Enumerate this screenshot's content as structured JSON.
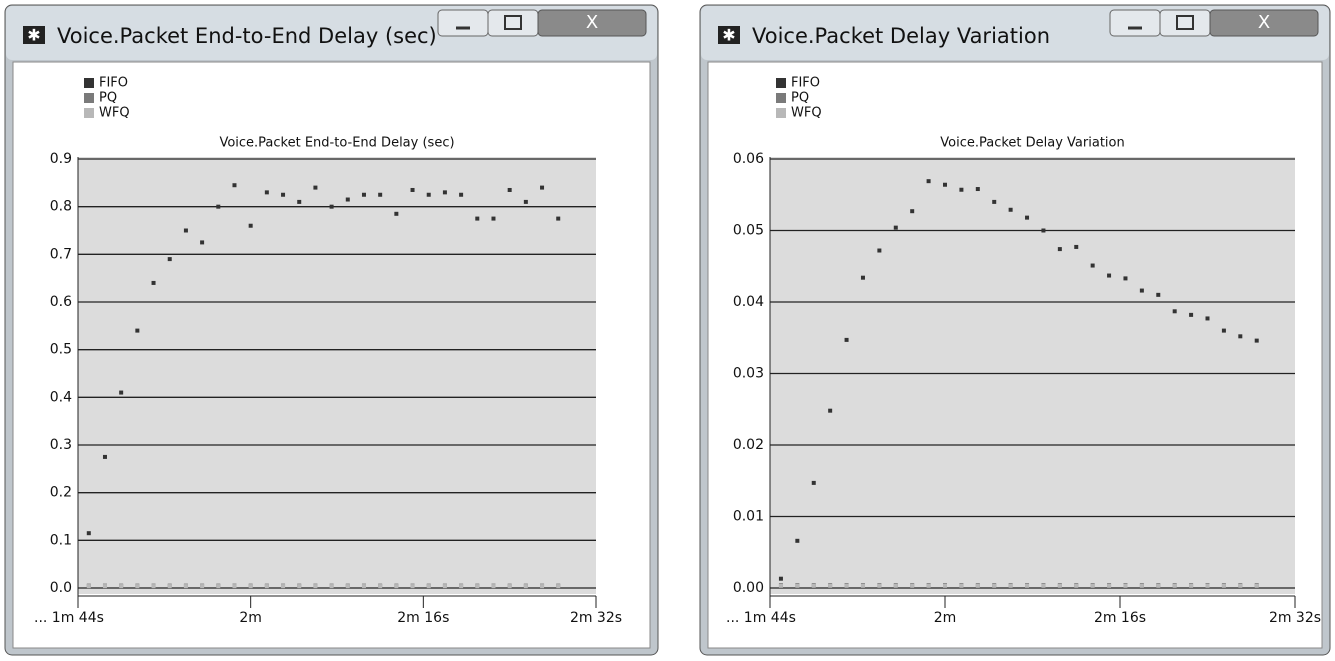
{
  "chart_data": [
    {
      "type": "scatter",
      "window_title": "Voice.Packet End-to-End Delay (sec)",
      "title": "Voice.Packet End-to-End Delay (sec)",
      "x": [
        105,
        106.5,
        108,
        109.5,
        111,
        112.5,
        114,
        115.5,
        117,
        118.5,
        120,
        121.5,
        123,
        124.5,
        126,
        127.5,
        129,
        130.5,
        132,
        133.5,
        135,
        136.5,
        138,
        139.5,
        141,
        142.5,
        144,
        145.5,
        147,
        148.5
      ],
      "series": [
        {
          "name": "FIFO",
          "color": "#333333",
          "values": [
            0.115,
            0.275,
            0.41,
            0.54,
            0.64,
            0.69,
            0.75,
            0.725,
            0.8,
            0.845,
            0.76,
            0.83,
            0.825,
            0.81,
            0.84,
            0.8,
            0.815,
            0.825,
            0.825,
            0.785,
            0.835,
            0.825,
            0.83,
            0.825,
            0.775,
            0.775,
            0.835,
            0.81,
            0.84,
            0.775
          ]
        },
        {
          "name": "PQ",
          "color": "#7a7a7a",
          "values": [
            0.005,
            0.005,
            0.005,
            0.005,
            0.005,
            0.005,
            0.005,
            0.005,
            0.005,
            0.005,
            0.005,
            0.005,
            0.005,
            0.005,
            0.005,
            0.005,
            0.005,
            0.005,
            0.005,
            0.005,
            0.005,
            0.005,
            0.005,
            0.005,
            0.005,
            0.005,
            0.005,
            0.005,
            0.005,
            0.005
          ]
        },
        {
          "name": "WFQ",
          "color": "#b8b8b8",
          "values": [
            0.004,
            0.004,
            0.004,
            0.004,
            0.004,
            0.004,
            0.004,
            0.004,
            0.004,
            0.004,
            0.004,
            0.004,
            0.004,
            0.004,
            0.004,
            0.004,
            0.004,
            0.004,
            0.004,
            0.004,
            0.004,
            0.004,
            0.004,
            0.004,
            0.004,
            0.004,
            0.004,
            0.004,
            0.004,
            0.004
          ]
        }
      ],
      "xlim": [
        104,
        152
      ],
      "xticks": [
        {
          "value": 104,
          "label": "... 1m 44s"
        },
        {
          "value": 120,
          "label": "2m"
        },
        {
          "value": 136,
          "label": "2m 16s"
        },
        {
          "value": 152,
          "label": "2m 32s"
        }
      ],
      "ylim": [
        0,
        0.9
      ],
      "yticks": [
        {
          "value": 0,
          "label": "0.0"
        },
        0.1,
        0.2,
        0.3,
        0.4,
        0.5,
        0.6,
        0.7,
        0.8,
        0.9
      ],
      "grid": true,
      "legend": "top-left"
    },
    {
      "type": "scatter",
      "window_title": "Voice.Packet Delay Variation",
      "title": "Voice.Packet Delay Variation",
      "x": [
        105,
        106.5,
        108,
        109.5,
        111,
        112.5,
        114,
        115.5,
        117,
        118.5,
        120,
        121.5,
        123,
        124.5,
        126,
        127.5,
        129,
        130.5,
        132,
        133.5,
        135,
        136.5,
        138,
        139.5,
        141,
        142.5,
        144,
        145.5,
        147,
        148.5
      ],
      "series": [
        {
          "name": "FIFO",
          "color": "#333333",
          "values": [
            0.0013,
            0.0066,
            0.0147,
            0.0248,
            0.0347,
            0.0434,
            0.0472,
            0.0504,
            0.0527,
            0.0569,
            0.0564,
            0.0557,
            0.0558,
            0.054,
            0.0529,
            0.0518,
            0.05,
            0.0474,
            0.0477,
            0.0451,
            0.0437,
            0.0433,
            0.0416,
            0.041,
            0.0387,
            0.0382,
            0.0377,
            0.036,
            0.0352,
            0.0346
          ]
        },
        {
          "name": "PQ",
          "color": "#7a7a7a",
          "values": [
            0.0004,
            0.0004,
            0.0004,
            0.0004,
            0.0004,
            0.0004,
            0.0004,
            0.0004,
            0.0004,
            0.0004,
            0.0004,
            0.0004,
            0.0004,
            0.0004,
            0.0004,
            0.0004,
            0.0004,
            0.0004,
            0.0004,
            0.0004,
            0.0004,
            0.0004,
            0.0004,
            0.0004,
            0.0004,
            0.0004,
            0.0004,
            0.0004,
            0.0004,
            0.0004
          ]
        },
        {
          "name": "WFQ",
          "color": "#b8b8b8",
          "values": [
            0.0003,
            0.0003,
            0.0003,
            0.0003,
            0.0003,
            0.0003,
            0.0003,
            0.0003,
            0.0003,
            0.0003,
            0.0003,
            0.0003,
            0.0003,
            0.0003,
            0.0003,
            0.0003,
            0.0003,
            0.0003,
            0.0003,
            0.0003,
            0.0003,
            0.0003,
            0.0003,
            0.0003,
            0.0003,
            0.0003,
            0.0003,
            0.0003,
            0.0003,
            0.0003
          ]
        }
      ],
      "xlim": [
        104,
        152
      ],
      "xticks": [
        {
          "value": 104,
          "label": "... 1m 44s"
        },
        {
          "value": 120,
          "label": "2m"
        },
        {
          "value": 136,
          "label": "2m 16s"
        },
        {
          "value": 152,
          "label": "2m 32s"
        }
      ],
      "ylim": [
        0,
        0.06
      ],
      "yticks": [
        {
          "value": 0,
          "label": "0.00"
        },
        0.01,
        0.02,
        0.03,
        0.04,
        0.05,
        0.06
      ],
      "grid": true,
      "legend": "top-left"
    }
  ]
}
